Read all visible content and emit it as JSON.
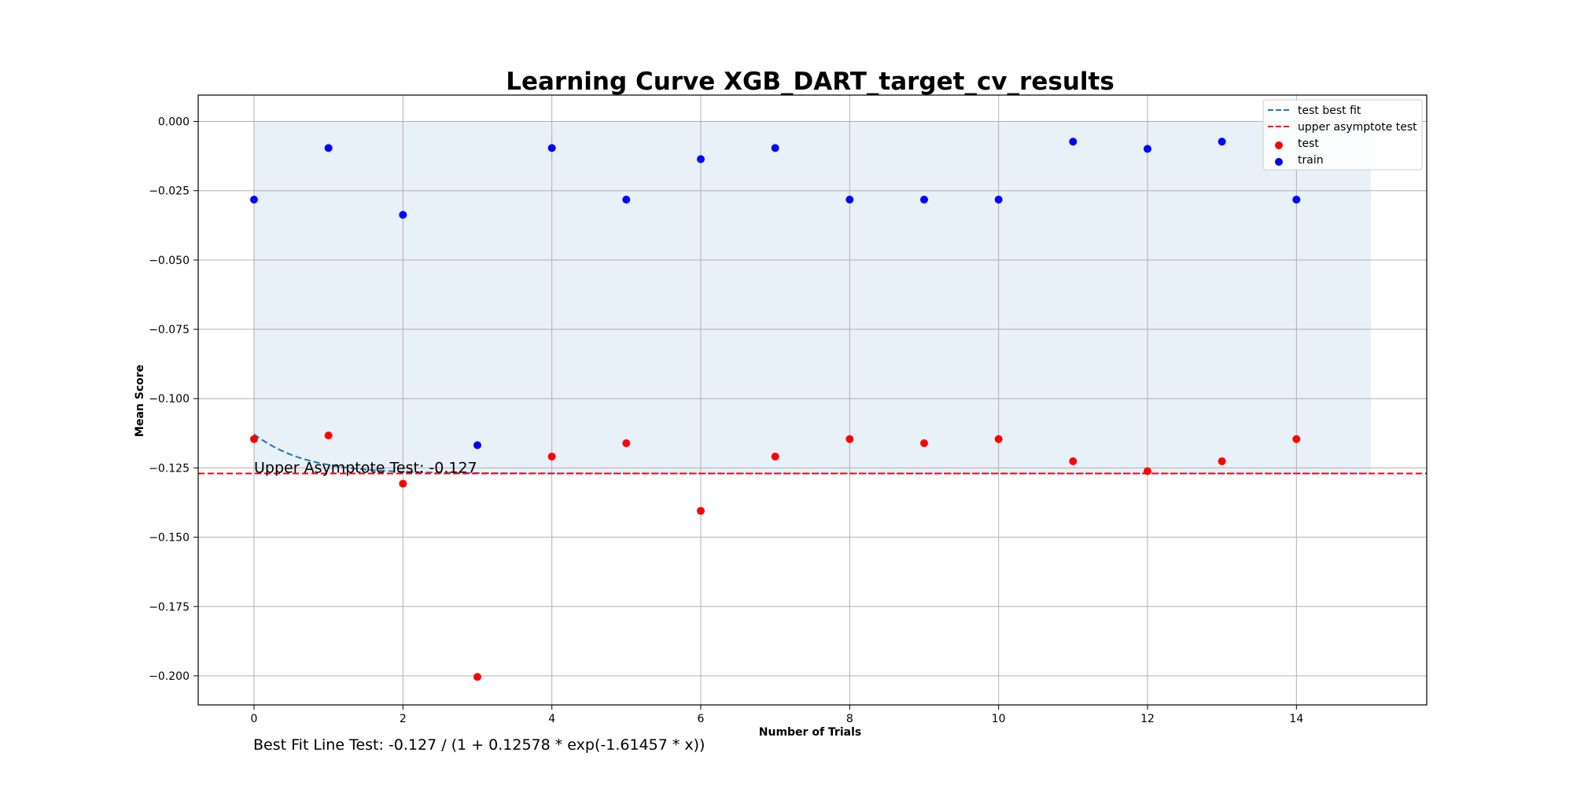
{
  "chart_data": {
    "type": "scatter",
    "title": "Learning Curve XGB_DART_target_cv_results",
    "xlabel": "Number of Trials",
    "ylabel": "Mean Score",
    "xlim": [
      -0.75,
      15.75
    ],
    "ylim": [
      -0.2105,
      0.0095
    ],
    "xticks": [
      0,
      2,
      4,
      6,
      8,
      10,
      12,
      14
    ],
    "xtick_labels": [
      "0",
      "2",
      "4",
      "6",
      "8",
      "10",
      "12",
      "14"
    ],
    "yticks": [
      0.0,
      -0.025,
      -0.05,
      -0.075,
      -0.1,
      -0.125,
      -0.15,
      -0.175,
      -0.2
    ],
    "ytick_labels": [
      "0.000",
      "−0.025",
      "−0.050",
      "−0.075",
      "−0.100",
      "−0.125",
      "−0.150",
      "−0.175",
      "−0.200"
    ],
    "grid": true,
    "legend_position": "top-right",
    "legend": [
      {
        "label": "test best fit",
        "kind": "dashed-line",
        "color": "#1f77b4"
      },
      {
        "label": "upper asymptote test",
        "kind": "dashed-line",
        "color": "#ff0000"
      },
      {
        "label": "test",
        "kind": "marker",
        "color": "#ff0000"
      },
      {
        "label": "train",
        "kind": "marker",
        "color": "#0000ff"
      }
    ],
    "series": [
      {
        "name": "test",
        "color": "#ff0000",
        "x": [
          0,
          1,
          2,
          3,
          4,
          5,
          6,
          7,
          8,
          9,
          10,
          11,
          12,
          13,
          14
        ],
        "y": [
          -0.1146,
          -0.1133,
          -0.1307,
          -0.2004,
          -0.1209,
          -0.1161,
          -0.1405,
          -0.1209,
          -0.1146,
          -0.1161,
          -0.1146,
          -0.1226,
          -0.1262,
          -0.1226,
          -0.1146
        ]
      },
      {
        "name": "train",
        "color": "#0000ff",
        "x": [
          0,
          1,
          2,
          3,
          4,
          5,
          6,
          7,
          8,
          9,
          10,
          11,
          12,
          13,
          14
        ],
        "y": [
          -0.0282,
          -0.0096,
          -0.0337,
          -0.1168,
          -0.0096,
          -0.0282,
          -0.0136,
          -0.0096,
          -0.0282,
          -0.0282,
          -0.0282,
          -0.0073,
          -0.0099,
          -0.0073,
          -0.0282
        ]
      }
    ],
    "best_fit": {
      "name": "test best fit",
      "color": "#1f77b4",
      "a": -0.127,
      "b": 0.12578,
      "c": -1.61457,
      "x_range": [
        0,
        15
      ]
    },
    "asymptote": {
      "name": "upper asymptote test",
      "color": "#ff0000",
      "y": -0.127
    },
    "shaded_region": {
      "color": "#e8f0f8",
      "x_range": [
        0,
        15
      ],
      "y_range": [
        -0.127,
        0.0
      ]
    },
    "annotations": {
      "asymptote_label": "Upper Asymptote Test: -0.127",
      "asymptote_label_at": {
        "x": 0,
        "y": -0.127
      },
      "formula_label": "Best Fit Line Test: -0.127 / (1 + 0.12578 * exp(-1.61457 * x))"
    }
  }
}
